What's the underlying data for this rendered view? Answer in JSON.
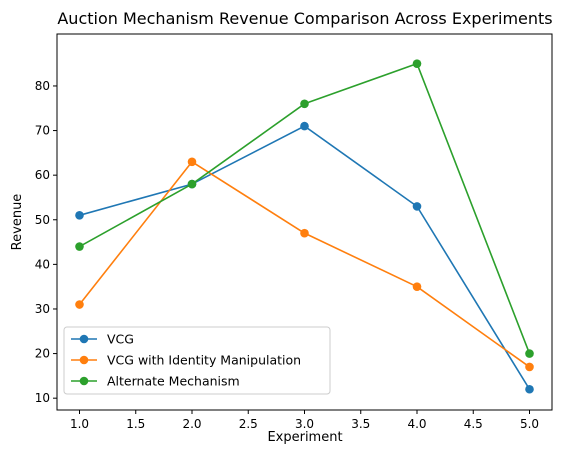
{
  "chart_data": {
    "type": "line",
    "title": "Auction Mechanism Revenue Comparison Across Experiments",
    "xlabel": "Experiment",
    "ylabel": "Revenue",
    "xlim": [
      0.8,
      5.2
    ],
    "ylim": [
      7.35,
      91.65
    ],
    "xticks": [
      "1.0",
      "1.5",
      "2.0",
      "2.5",
      "3.0",
      "3.5",
      "4.0",
      "4.5",
      "5.0"
    ],
    "yticks": [
      "10",
      "20",
      "30",
      "40",
      "50",
      "60",
      "70",
      "80"
    ],
    "grid": false,
    "legend_position": "lower-left",
    "x": [
      1,
      2,
      3,
      4,
      5
    ],
    "series": [
      {
        "name": "VCG",
        "color": "#1f77b4",
        "marker": "circle",
        "values": [
          51,
          58,
          71,
          53,
          12
        ]
      },
      {
        "name": "VCG with Identity Manipulation",
        "color": "#ff7f0e",
        "marker": "circle",
        "values": [
          31,
          63,
          47,
          35,
          17
        ]
      },
      {
        "name": "Alternate Mechanism",
        "color": "#2ca02c",
        "marker": "circle",
        "values": [
          44,
          58,
          76,
          85,
          20
        ]
      }
    ]
  }
}
